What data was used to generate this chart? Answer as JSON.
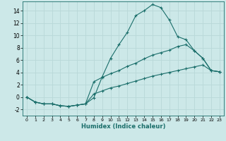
{
  "xlabel": "Humidex (Indice chaleur)",
  "background_color": "#cce8e8",
  "grid_color": "#b8d8d8",
  "line_color": "#1a6e6a",
  "xlim": [
    -0.5,
    23.5
  ],
  "ylim": [
    -3.0,
    15.5
  ],
  "xticks": [
    0,
    1,
    2,
    3,
    4,
    5,
    6,
    7,
    8,
    9,
    10,
    11,
    12,
    13,
    14,
    15,
    16,
    17,
    18,
    19,
    20,
    21,
    22,
    23
  ],
  "yticks": [
    -2,
    0,
    2,
    4,
    6,
    8,
    10,
    12,
    14
  ],
  "line1_x": [
    0,
    1,
    2,
    3,
    4,
    5,
    6,
    7,
    8,
    9,
    10,
    11,
    12,
    13,
    14,
    15,
    16,
    17,
    18,
    19,
    20,
    21,
    22,
    23
  ],
  "line1_y": [
    0,
    -0.8,
    -1.1,
    -1.1,
    -1.4,
    -1.5,
    -1.3,
    -1.1,
    -0.1,
    3.3,
    6.3,
    8.5,
    10.5,
    13.2,
    14.0,
    15.0,
    14.5,
    12.5,
    9.8,
    9.3,
    7.5,
    6.3,
    4.3,
    4.1
  ],
  "line2_x": [
    0,
    1,
    2,
    3,
    4,
    5,
    6,
    7,
    8,
    9,
    10,
    11,
    12,
    13,
    14,
    15,
    16,
    17,
    18,
    19,
    20,
    21,
    22,
    23
  ],
  "line2_y": [
    0,
    -0.8,
    -1.1,
    -1.1,
    -1.4,
    -1.5,
    -1.3,
    -1.1,
    2.5,
    3.2,
    3.8,
    4.3,
    5.0,
    5.5,
    6.2,
    6.8,
    7.2,
    7.6,
    8.2,
    8.5,
    7.5,
    6.3,
    4.3,
    4.1
  ],
  "line3_x": [
    0,
    1,
    2,
    3,
    4,
    5,
    6,
    7,
    8,
    9,
    10,
    11,
    12,
    13,
    14,
    15,
    16,
    17,
    18,
    19,
    20,
    21,
    22,
    23
  ],
  "line3_y": [
    0,
    -0.8,
    -1.1,
    -1.1,
    -1.4,
    -1.5,
    -1.3,
    -1.1,
    0.5,
    1.0,
    1.5,
    1.8,
    2.2,
    2.6,
    3.0,
    3.4,
    3.7,
    4.0,
    4.3,
    4.6,
    4.9,
    5.2,
    4.3,
    4.1
  ]
}
